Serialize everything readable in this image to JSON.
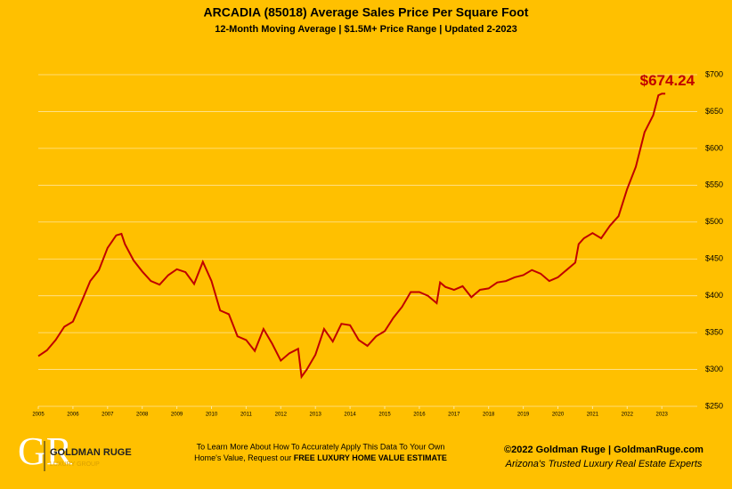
{
  "chart_data": {
    "type": "line",
    "title": "ARCADIA (85018) Average Sales Price Per Square Foot",
    "subtitle": "12-Month Moving Average | $1.5M+ Price Range | Updated 2-2023",
    "x": [
      2005.0,
      2005.25,
      2005.5,
      2005.75,
      2006.0,
      2006.25,
      2006.5,
      2006.75,
      2007.0,
      2007.25,
      2007.4,
      2007.5,
      2007.75,
      2008.0,
      2008.25,
      2008.5,
      2008.75,
      2009.0,
      2009.25,
      2009.5,
      2009.75,
      2010.0,
      2010.25,
      2010.5,
      2010.75,
      2011.0,
      2011.25,
      2011.5,
      2011.75,
      2012.0,
      2012.25,
      2012.5,
      2012.6,
      2012.75,
      2013.0,
      2013.25,
      2013.5,
      2013.75,
      2014.0,
      2014.25,
      2014.5,
      2014.75,
      2015.0,
      2015.25,
      2015.5,
      2015.75,
      2016.0,
      2016.25,
      2016.5,
      2016.6,
      2016.75,
      2017.0,
      2017.25,
      2017.5,
      2017.75,
      2018.0,
      2018.25,
      2018.5,
      2018.75,
      2019.0,
      2019.25,
      2019.5,
      2019.75,
      2020.0,
      2020.25,
      2020.5,
      2020.6,
      2020.75,
      2021.0,
      2021.25,
      2021.5,
      2021.75,
      2022.0,
      2022.25,
      2022.5,
      2022.75,
      2022.9,
      2023.0,
      2023.1
    ],
    "series": [
      {
        "name": "Average Sales Price Per Square Foot",
        "color": "#c00000",
        "values": [
          318,
          326,
          340,
          358,
          365,
          392,
          420,
          435,
          465,
          482,
          484,
          470,
          448,
          433,
          420,
          415,
          428,
          436,
          432,
          416,
          446,
          420,
          380,
          375,
          345,
          340,
          325,
          355,
          335,
          312,
          322,
          328,
          290,
          300,
          320,
          355,
          338,
          362,
          360,
          340,
          332,
          345,
          352,
          370,
          385,
          405,
          405,
          400,
          390,
          418,
          412,
          408,
          413,
          398,
          408,
          410,
          418,
          420,
          425,
          428,
          435,
          430,
          420,
          425,
          435,
          445,
          470,
          478,
          485,
          478,
          495,
          508,
          545,
          575,
          622,
          645,
          672,
          674.24,
          674.24
        ],
        "value_labels": [
          null,
          null,
          null,
          null,
          null,
          null,
          null,
          null,
          null,
          null,
          null,
          null,
          null,
          null,
          null,
          null,
          null,
          null,
          null,
          null,
          null,
          null,
          null,
          null,
          null,
          null,
          null,
          null,
          null,
          null,
          null,
          null,
          null,
          null,
          null,
          null,
          null,
          null,
          null,
          null,
          null,
          null,
          null,
          null,
          null,
          null,
          null,
          null,
          null,
          null,
          null,
          null,
          null,
          null,
          null,
          null,
          null,
          null,
          null,
          null,
          null,
          null,
          null,
          null,
          null,
          null,
          null,
          null,
          null,
          null,
          null,
          null,
          null,
          null,
          null,
          null,
          null,
          null,
          "$674.24"
        ]
      }
    ],
    "xlim": [
      2005,
      2024
    ],
    "xticks": [
      2005,
      2006,
      2007,
      2008,
      2009,
      2010,
      2011,
      2012,
      2013,
      2014,
      2015,
      2016,
      2017,
      2018,
      2019,
      2020,
      2021,
      2022,
      2023
    ],
    "ylim": [
      250,
      700
    ],
    "yticks": [
      {
        "value": 250,
        "label": "$250"
      },
      {
        "value": 300,
        "label": "$300"
      },
      {
        "value": 350,
        "label": "$350"
      },
      {
        "value": 400,
        "label": "$400"
      },
      {
        "value": 450,
        "label": "$450"
      },
      {
        "value": 500,
        "label": "$500"
      },
      {
        "value": 550,
        "label": "$550"
      },
      {
        "value": 600,
        "label": "$600"
      },
      {
        "value": 650,
        "label": "$650"
      },
      {
        "value": 700,
        "label": "$700"
      }
    ],
    "grid": true
  },
  "footer": {
    "logo": "GOLDMAN RUGE",
    "logo_sub": "LUXURY GROUP",
    "cta_line1": "To Learn More About How To Accurately Apply This Data To Your Own",
    "cta_line2_prefix": "Home's Value, Request our ",
    "cta_line2_bold": "FREE LUXURY HOME VALUE ESTIMATE",
    "copyright": "©2022 Goldman Ruge  |  GoldmanRuge.com",
    "tagline": "Arizona's Trusted Luxury Real Estate Experts"
  }
}
